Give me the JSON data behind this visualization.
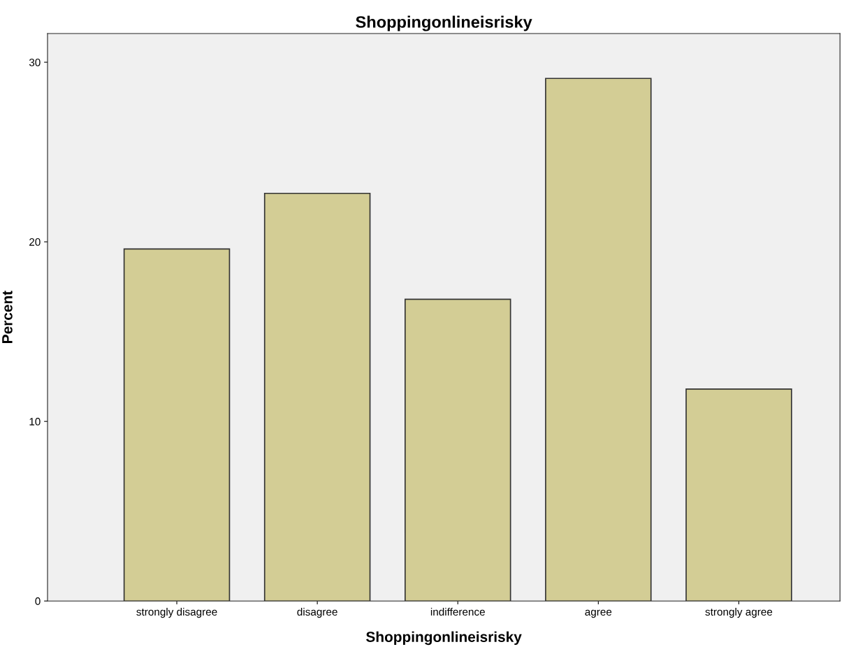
{
  "chart_data": {
    "type": "bar",
    "title": "Shoppingonlineisrisky",
    "xlabel": "Shoppingonlineisrisky",
    "ylabel": "Percent",
    "categories": [
      "strongly disagree",
      "disagree",
      "indifference",
      "agree",
      "strongly agree"
    ],
    "values": [
      19.6,
      22.7,
      16.8,
      29.1,
      11.8
    ],
    "color": "#d3cd95",
    "ylim": [
      0,
      31.6
    ],
    "yticks": [
      0,
      10,
      20,
      30
    ],
    "grid": false,
    "legend": false
  }
}
